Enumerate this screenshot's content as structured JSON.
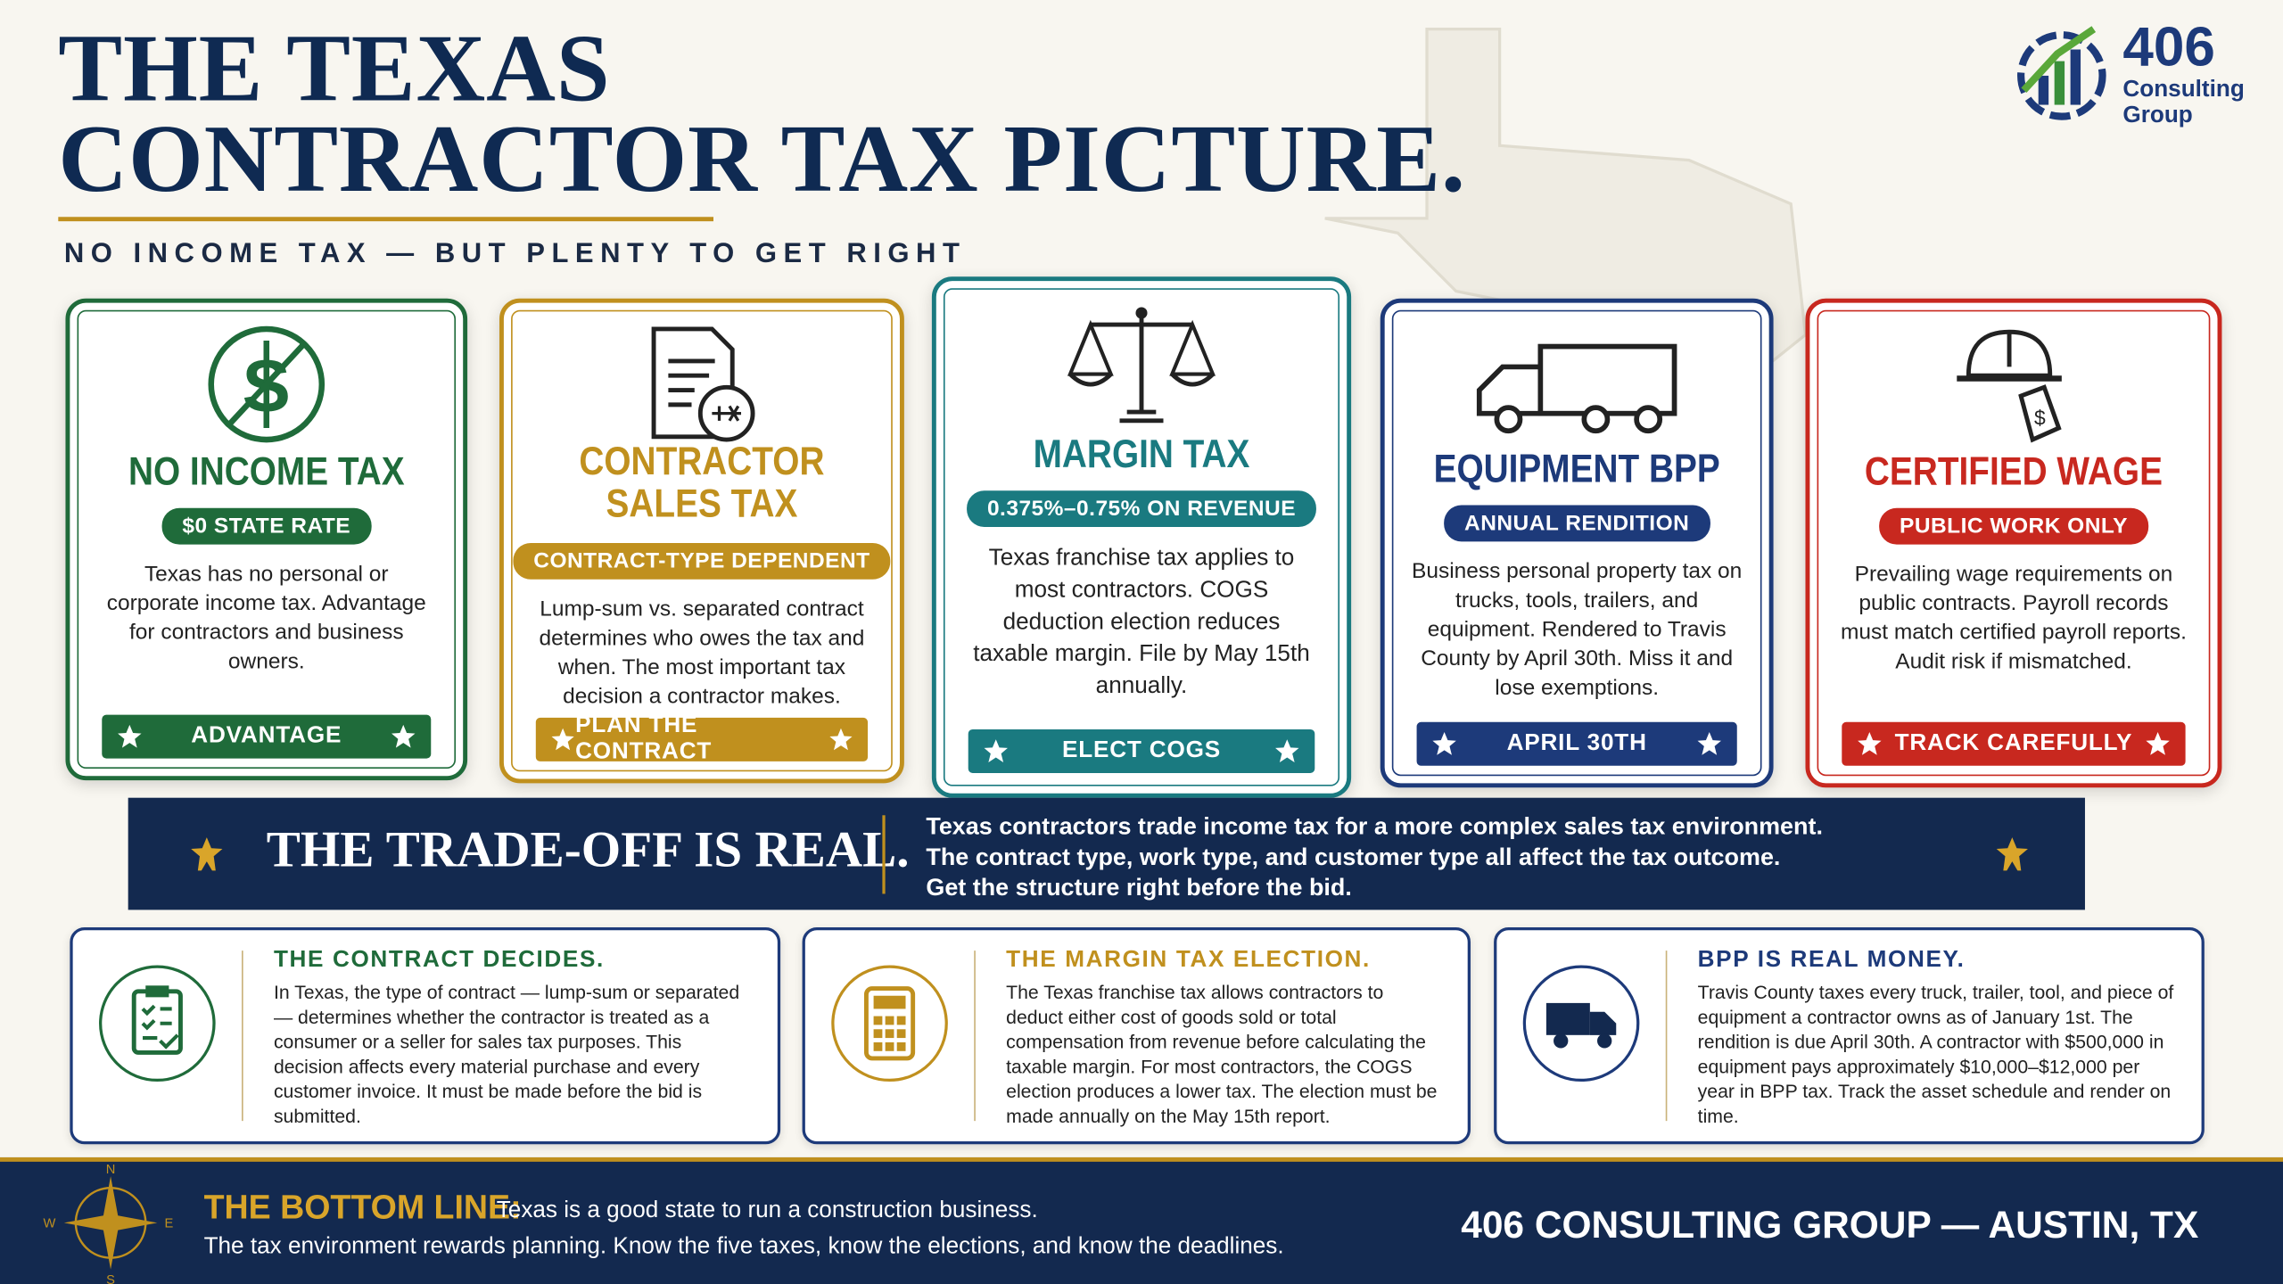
{
  "header": {
    "title": [
      "THE TEXAS",
      "CONTRACTOR TAX PICTURE."
    ],
    "subtitle": "NO INCOME TAX — BUT PLENTY TO GET RIGHT",
    "logo": {
      "number": "406",
      "name": [
        "Consulting",
        "Group"
      ]
    }
  },
  "cards": [
    {
      "title": "NO INCOME TAX",
      "badge": "$0 STATE RATE",
      "body": "Texas has no personal or corporate income tax. Advantage for contractors and business owners.",
      "footer": "ADVANTAGE"
    },
    {
      "title": "CONTRACTOR SALES TAX",
      "badge": "CONTRACT-TYPE DEPENDENT",
      "body": "Lump-sum vs. separated contract determines who owes the tax and when. The most important tax decision a contractor makes.",
      "footer": "PLAN THE CONTRACT"
    },
    {
      "title": "MARGIN TAX",
      "badge": "0.375%–0.75% ON REVENUE",
      "body": "Texas franchise tax applies to most contractors. COGS deduction election reduces taxable margin. File by May 15th annually.",
      "footer": "ELECT COGS"
    },
    {
      "title": "EQUIPMENT BPP",
      "badge": "ANNUAL RENDITION",
      "body": "Business personal property tax on trucks, tools, trailers, and equipment. Rendered to Travis County by April 30th. Miss it and lose exemptions.",
      "footer": "APRIL 30TH"
    },
    {
      "title": "CERTIFIED WAGE",
      "badge": "PUBLIC WORK ONLY",
      "body": "Prevailing wage requirements on public contracts. Payroll records must match certified payroll reports. Audit risk if mismatched.",
      "footer": "TRACK CAREFULLY"
    }
  ],
  "tradeoff": {
    "heading": "THE TRADE-OFF IS REAL.",
    "lines": [
      "Texas contractors trade income tax for a more complex sales tax environment.",
      "The contract type, work type, and customer type all affect the tax outcome.",
      "Get the structure right before the bid."
    ]
  },
  "details": [
    {
      "title": "THE CONTRACT DECIDES.",
      "body": "In Texas, the type of contract — lump-sum or separated — determines whether the contractor is treated as a consumer or a seller for sales tax purposes. This decision affects every material purchase and every customer invoice. It must be made before the bid is submitted."
    },
    {
      "title": "THE MARGIN TAX ELECTION.",
      "body": "The Texas franchise tax allows contractors to deduct either cost of goods sold or total compensation from revenue before calculating the taxable margin. For most contractors, the COGS election produces a lower tax. The election must be made annually on the May 15th report."
    },
    {
      "title": "BPP IS REAL MONEY.",
      "body": "Travis County taxes every truck, trailer, tool, and piece of equipment a contractor owns as of January 1st. The rendition is due April 30th. A contractor with $500,000 in equipment pays approximately $10,000–$12,000 per year in BPP tax. Track the asset schedule and render on time."
    }
  ],
  "footer": {
    "label": "THE BOTTOM LINE:",
    "line1": "Texas is a good state to run a construction business.",
    "line2": "The tax environment rewards planning. Know the five taxes, know the elections, and know the deadlines.",
    "brand": "406 CONSULTING GROUP — AUSTIN, TX",
    "compass": [
      "N",
      "E",
      "S",
      "W"
    ]
  }
}
